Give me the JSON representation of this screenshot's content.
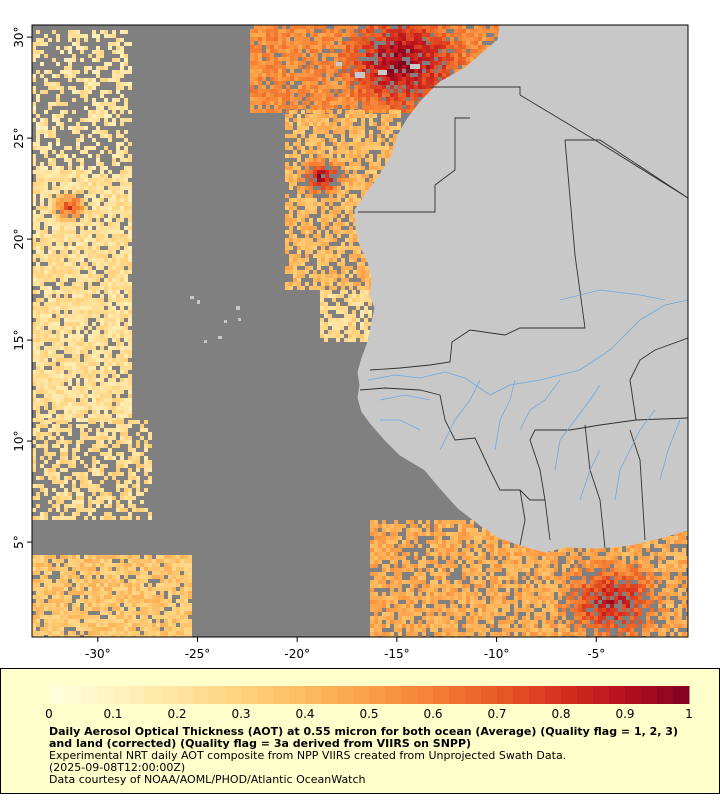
{
  "map": {
    "lon_range": [
      -33.3,
      -0.4
    ],
    "lat_range": [
      0.3,
      30.6
    ],
    "colors": {
      "ocean_no_data": "#808080",
      "land": "#c8c8c8",
      "border": "#303030",
      "river": "#6fa8dc"
    },
    "x_ticks": [
      {
        "value": -30,
        "label": "-30°"
      },
      {
        "value": -25,
        "label": "-25°"
      },
      {
        "value": -20,
        "label": "-20°"
      },
      {
        "value": -15,
        "label": "-15°"
      },
      {
        "value": -10,
        "label": "-10°"
      },
      {
        "value": -5,
        "label": "-5°"
      }
    ],
    "y_ticks": [
      {
        "value": 30,
        "label": "30°"
      },
      {
        "value": 25,
        "label": "25°"
      },
      {
        "value": 20,
        "label": "20°"
      },
      {
        "value": 15,
        "label": "15°"
      },
      {
        "value": 10,
        "label": "10°"
      },
      {
        "value": 5,
        "label": "5°"
      }
    ]
  },
  "colorbar": {
    "min": 0,
    "max": 1,
    "ticks": [
      {
        "value": 0,
        "label": "0"
      },
      {
        "value": 0.1,
        "label": "0.1"
      },
      {
        "value": 0.2,
        "label": "0.2"
      },
      {
        "value": 0.3,
        "label": "0.3"
      },
      {
        "value": 0.4,
        "label": "0.4"
      },
      {
        "value": 0.5,
        "label": "0.5"
      },
      {
        "value": 0.6,
        "label": "0.6"
      },
      {
        "value": 0.7,
        "label": "0.7"
      },
      {
        "value": 0.8,
        "label": "0.8"
      },
      {
        "value": 0.9,
        "label": "0.9"
      },
      {
        "value": 1,
        "label": "1"
      }
    ],
    "colors": [
      "#ffffe0",
      "#fff3c0",
      "#ffe4a0",
      "#ffd27e",
      "#fdbb60",
      "#fb9f48",
      "#f57f34",
      "#e85a26",
      "#d7301f",
      "#b51020",
      "#800020"
    ]
  },
  "caption": {
    "title": "Daily Aerosol Optical Thickness (AOT) at 0.55 micron for both ocean (Average) (Quality flag = 1, 2, 3) and land (corrected) (Quality flag = 3a derived from VIIRS on SNPP)",
    "line1": "Experimental NRT daily AOT composite from NPP VIIRS created from Unprojected Swath Data.",
    "line2": "(2025-09-08T12:00:00Z)",
    "line3": "Data courtesy of NOAA/AOML/PHOD/Atlantic OceanWatch"
  }
}
